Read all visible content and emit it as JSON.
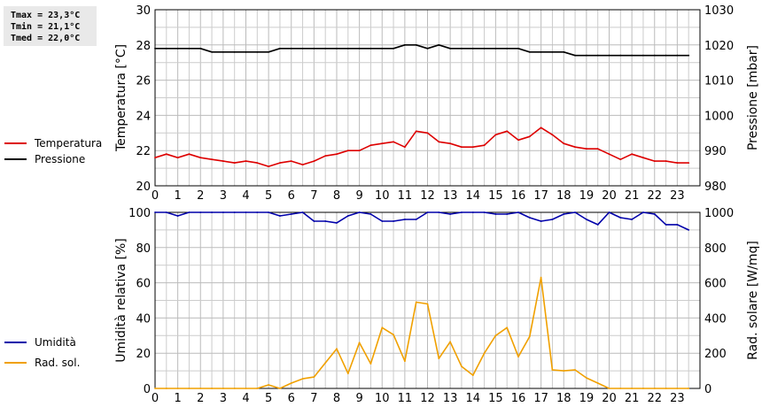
{
  "stats": {
    "tmax": "Tmax = 23,3°C",
    "tmin": "Tmin = 21,1°C",
    "tmed": "Tmed = 22,0°C"
  },
  "colors": {
    "temperatura": "#dd0000",
    "pressione": "#000000",
    "umidita": "#0000aa",
    "radsol": "#f0a000",
    "grid": "#cccccc",
    "grid_major": "#bbbbbb"
  },
  "chart_data": [
    {
      "type": "line",
      "xlabel": "",
      "xlim": [
        0,
        24
      ],
      "xticks": [
        0,
        1,
        2,
        3,
        4,
        5,
        6,
        7,
        8,
        9,
        10,
        11,
        12,
        13,
        14,
        15,
        16,
        17,
        18,
        19,
        20,
        21,
        22,
        23
      ],
      "ylabel": "Temperatura [°C]",
      "ylim": [
        20,
        30
      ],
      "yticks": [
        20,
        22,
        24,
        26,
        28,
        30
      ],
      "y2label": "Pressione [mbar]",
      "y2lim": [
        980,
        1030
      ],
      "y2ticks": [
        980,
        990,
        1000,
        1010,
        1020,
        1030
      ],
      "grid": true,
      "legend": "left",
      "series": [
        {
          "name": "Temperatura",
          "axis": "left",
          "x": [
            0,
            0.5,
            1,
            1.5,
            2,
            2.5,
            3,
            3.5,
            4,
            4.5,
            5,
            5.5,
            6,
            6.5,
            7,
            7.5,
            8,
            8.5,
            9,
            9.5,
            10,
            10.5,
            11,
            11.5,
            12,
            12.5,
            13,
            13.5,
            14,
            14.5,
            15,
            15.5,
            16,
            16.5,
            17,
            17.5,
            18,
            18.5,
            19,
            19.5,
            20,
            20.5,
            21,
            21.5,
            22,
            22.5,
            23,
            23.5
          ],
          "values": [
            21.6,
            21.8,
            21.6,
            21.8,
            21.6,
            21.5,
            21.4,
            21.3,
            21.4,
            21.3,
            21.1,
            21.3,
            21.4,
            21.2,
            21.4,
            21.7,
            21.8,
            22.0,
            22.0,
            22.3,
            22.4,
            22.5,
            22.2,
            23.1,
            23.0,
            22.5,
            22.4,
            22.2,
            22.2,
            22.3,
            22.9,
            23.1,
            22.6,
            22.8,
            23.3,
            22.9,
            22.4,
            22.2,
            22.1,
            22.1,
            21.8,
            21.5,
            21.8,
            21.6,
            21.4,
            21.4,
            21.3,
            21.3
          ]
        },
        {
          "name": "Pressione",
          "axis": "right",
          "x": [
            0,
            0.5,
            1,
            1.5,
            2,
            2.5,
            3,
            3.5,
            4,
            4.5,
            5,
            5.5,
            6,
            6.5,
            7,
            7.5,
            8,
            8.5,
            9,
            9.5,
            10,
            10.5,
            11,
            11.5,
            12,
            12.5,
            13,
            13.5,
            14,
            14.5,
            15,
            15.5,
            16,
            16.5,
            17,
            17.5,
            18,
            18.5,
            19,
            19.5,
            20,
            20.5,
            21,
            21.5,
            22,
            22.5,
            23,
            23.5
          ],
          "values": [
            1019,
            1019,
            1019,
            1019,
            1019,
            1018,
            1018,
            1018,
            1018,
            1018,
            1018,
            1019,
            1019,
            1019,
            1019,
            1019,
            1019,
            1019,
            1019,
            1019,
            1019,
            1019,
            1020,
            1020,
            1019,
            1020,
            1019,
            1019,
            1019,
            1019,
            1019,
            1019,
            1019,
            1018,
            1018,
            1018,
            1018,
            1017,
            1017,
            1017,
            1017,
            1017,
            1017,
            1017,
            1017,
            1017,
            1017,
            1017
          ]
        }
      ]
    },
    {
      "type": "line",
      "xlabel": "",
      "xlim": [
        0,
        24
      ],
      "xticks": [
        0,
        1,
        2,
        3,
        4,
        5,
        6,
        7,
        8,
        9,
        10,
        11,
        12,
        13,
        14,
        15,
        16,
        17,
        18,
        19,
        20,
        21,
        22,
        23
      ],
      "ylabel": "Umidità relativa [%]",
      "ylim": [
        0,
        100
      ],
      "yticks": [
        0,
        20,
        40,
        60,
        80,
        100
      ],
      "y2label": "Rad. solare [W/mq]",
      "y2lim": [
        0,
        1000
      ],
      "y2ticks": [
        0,
        200,
        400,
        600,
        800,
        1000
      ],
      "grid": true,
      "legend": "left",
      "series": [
        {
          "name": "Umidità",
          "axis": "left",
          "x": [
            0,
            0.5,
            1,
            1.5,
            2,
            2.5,
            3,
            3.5,
            4,
            4.5,
            5,
            5.5,
            6,
            6.5,
            7,
            7.5,
            8,
            8.5,
            9,
            9.5,
            10,
            10.5,
            11,
            11.5,
            12,
            12.5,
            13,
            13.5,
            14,
            14.5,
            15,
            15.5,
            16,
            16.5,
            17,
            17.5,
            18,
            18.5,
            19,
            19.5,
            20,
            20.5,
            21,
            21.5,
            22,
            22.5,
            23,
            23.5
          ],
          "values": [
            100,
            100,
            98,
            100,
            100,
            100,
            100,
            100,
            100,
            100,
            100,
            98,
            99,
            100,
            95,
            95,
            94,
            98,
            100,
            99,
            95,
            95,
            96,
            96,
            100,
            100,
            99,
            100,
            100,
            100,
            99,
            99,
            100,
            97,
            95,
            96,
            99,
            100,
            96,
            93,
            100,
            97,
            96,
            100,
            99,
            93,
            93,
            90
          ]
        },
        {
          "name": "Rad. sol.",
          "axis": "right",
          "x": [
            0,
            0.5,
            1,
            1.5,
            2,
            2.5,
            3,
            3.5,
            4,
            4.5,
            5,
            5.5,
            6,
            6.5,
            7,
            7.5,
            8,
            8.5,
            9,
            9.5,
            10,
            10.5,
            11,
            11.5,
            12,
            12.5,
            13,
            13.5,
            14,
            14.5,
            15,
            15.5,
            16,
            16.5,
            17,
            17.5,
            18,
            18.5,
            19,
            19.5,
            20,
            20.5,
            21,
            21.5,
            22,
            22.5,
            23,
            23.5
          ],
          "values": [
            0,
            0,
            0,
            0,
            0,
            0,
            0,
            0,
            0,
            0,
            20,
            0,
            30,
            55,
            65,
            145,
            225,
            85,
            260,
            140,
            345,
            305,
            155,
            490,
            480,
            170,
            265,
            125,
            75,
            200,
            300,
            345,
            180,
            295,
            630,
            105,
            100,
            105,
            60,
            30,
            0,
            0,
            0,
            0,
            0,
            0,
            0,
            0
          ]
        }
      ]
    }
  ]
}
